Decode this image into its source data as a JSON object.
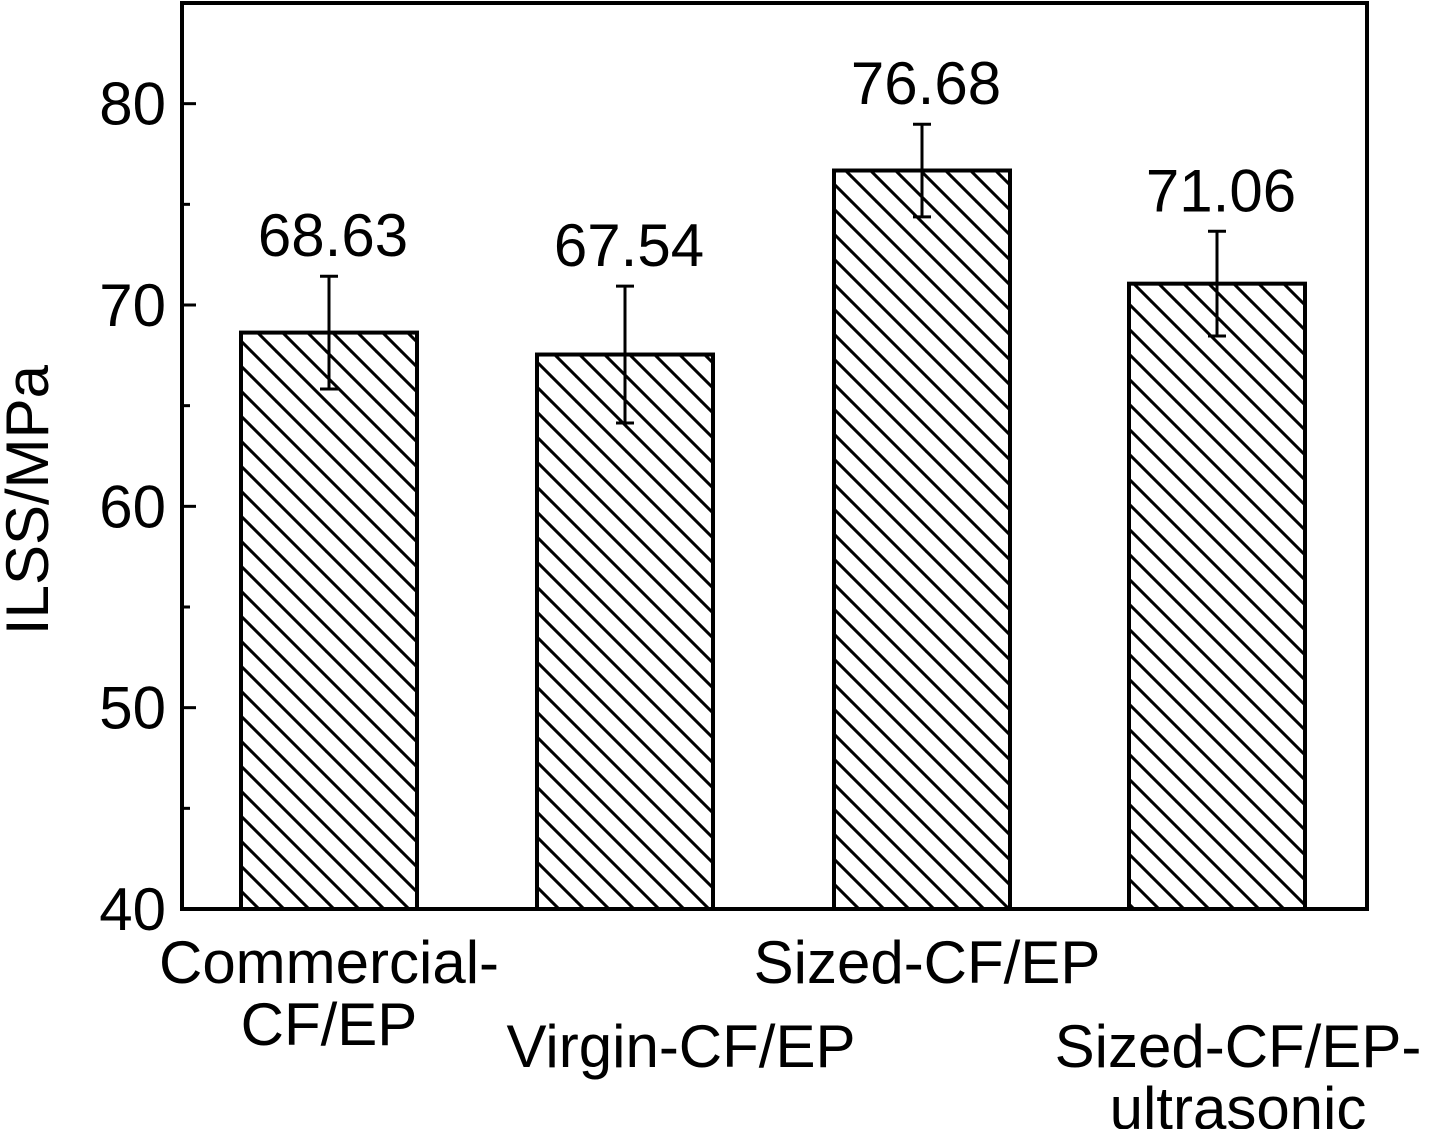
{
  "chart_data": {
    "type": "bar",
    "title": "",
    "xlabel": "",
    "ylabel": "ILSS/MPa",
    "ylim": [
      40,
      85
    ],
    "yticks": [
      40,
      50,
      60,
      70,
      80
    ],
    "categories": [
      [
        "Commercial-",
        "CF/EP"
      ],
      [
        "Virgin-CF/EP"
      ],
      [
        "Sized-CF/EP"
      ],
      [
        "Sized-CF/EP-",
        "ultrasonic"
      ]
    ],
    "values": [
      68.63,
      67.54,
      76.68,
      71.06
    ],
    "errors": [
      2.8,
      3.4,
      2.3,
      2.6
    ],
    "data_labels": [
      "68.63",
      "67.54",
      "76.68",
      "71.06"
    ],
    "fill_pattern": "diagonal-hatch",
    "colors": {
      "stroke": "#000000",
      "background": "#ffffff"
    }
  }
}
